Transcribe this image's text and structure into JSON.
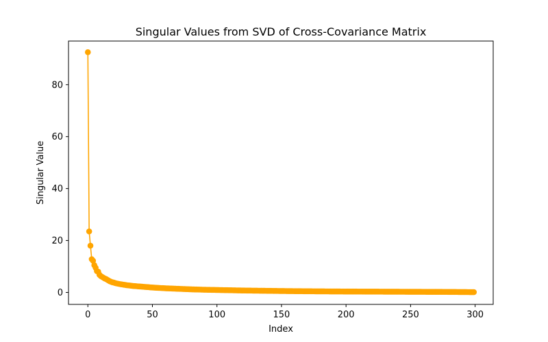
{
  "chart_data": {
    "type": "line",
    "title": "Singular Values from SVD of Cross-Covariance Matrix",
    "xlabel": "Index",
    "ylabel": "Singular Value",
    "xlim": [
      -15.0,
      314.0
    ],
    "ylim": [
      -4.6,
      96.8
    ],
    "xticks": [
      0,
      50,
      100,
      150,
      200,
      250,
      300
    ],
    "yticks": [
      0,
      20,
      40,
      60,
      80
    ],
    "grid": false,
    "legend": "none",
    "color": "#FFA500",
    "marker": "circle",
    "n_points": 300,
    "series": [
      {
        "x": [
          0,
          1,
          2,
          3,
          4,
          5,
          6,
          7,
          8,
          9,
          10,
          11,
          12,
          13,
          14,
          15,
          16,
          17,
          18,
          19,
          20,
          22,
          25,
          30,
          35,
          40,
          45,
          50,
          60,
          70,
          80,
          90,
          100,
          110,
          120,
          130,
          140,
          150,
          160,
          170,
          180,
          200,
          220,
          240,
          260,
          280,
          299
        ],
        "values": [
          92.5,
          23.5,
          18.0,
          12.8,
          12.2,
          10.5,
          9.5,
          8.2,
          8.0,
          6.8,
          6.3,
          6.0,
          5.7,
          5.4,
          5.2,
          4.9,
          4.6,
          4.3,
          4.1,
          3.9,
          3.8,
          3.5,
          3.2,
          2.8,
          2.5,
          2.3,
          2.1,
          1.9,
          1.6,
          1.4,
          1.2,
          1.05,
          0.95,
          0.85,
          0.75,
          0.68,
          0.62,
          0.55,
          0.5,
          0.45,
          0.42,
          0.36,
          0.32,
          0.28,
          0.24,
          0.2,
          0.12
        ]
      }
    ]
  }
}
